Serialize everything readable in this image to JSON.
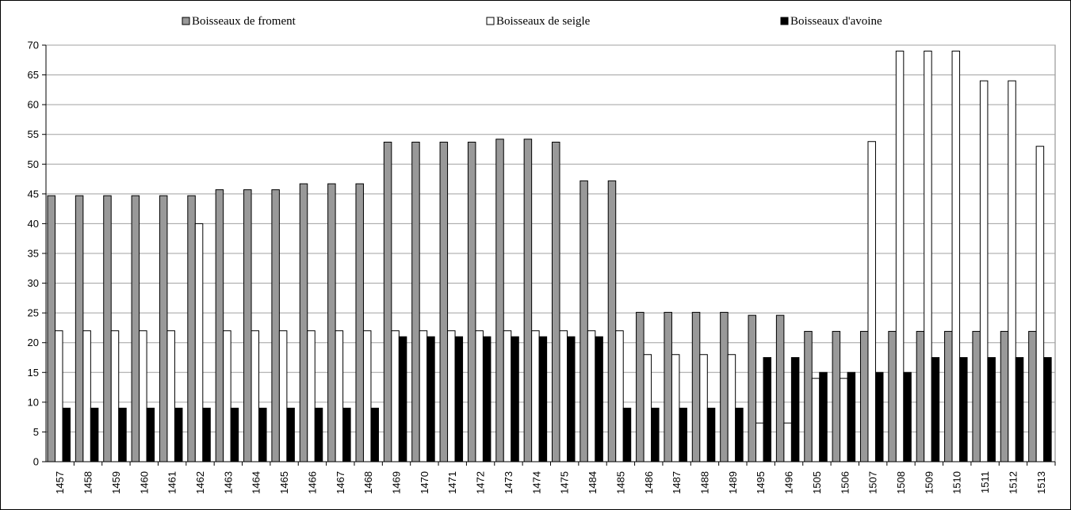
{
  "chart_data": {
    "type": "bar",
    "title": "",
    "xlabel": "",
    "ylabel": "",
    "ylim": [
      0,
      70
    ],
    "yticks": [
      0,
      5,
      10,
      15,
      20,
      25,
      30,
      35,
      40,
      45,
      50,
      55,
      60,
      65,
      70
    ],
    "grid": true,
    "legend_position": "top",
    "categories": [
      "1457",
      "1458",
      "1459",
      "1460",
      "1461",
      "1462",
      "1463",
      "1464",
      "1465",
      "1466",
      "1467",
      "1468",
      "1469",
      "1470",
      "1471",
      "1472",
      "1473",
      "1474",
      "1475",
      "1484",
      "1485",
      "1486",
      "1487",
      "1488",
      "1489",
      "1495",
      "1496",
      "1505",
      "1506",
      "1507",
      "1508",
      "1509",
      "1510",
      "1511",
      "1512",
      "1513"
    ],
    "series": [
      {
        "name": "Boisseaux de froment",
        "color": "#999999",
        "values": [
          44.7,
          44.7,
          44.7,
          44.7,
          44.7,
          44.7,
          45.7,
          45.7,
          45.7,
          46.7,
          46.7,
          46.7,
          53.7,
          53.7,
          53.7,
          53.7,
          54.2,
          54.2,
          53.7,
          47.2,
          47.2,
          25.1,
          25.1,
          25.1,
          25.1,
          24.6,
          24.6,
          21.9,
          21.9,
          21.9,
          21.9,
          21.9,
          21.9,
          21.9,
          21.9,
          21.9
        ]
      },
      {
        "name": "Boisseaux de seigle",
        "color": "#ffffff",
        "values": [
          22,
          22,
          22,
          22,
          22,
          40,
          22,
          22,
          22,
          22,
          22,
          22,
          22,
          22,
          22,
          22,
          22,
          22,
          22,
          22,
          22,
          18,
          18,
          18,
          18,
          6.5,
          6.5,
          14,
          14,
          53.8,
          69,
          69,
          69,
          64,
          64,
          53
        ]
      },
      {
        "name": "Boisseaux d'avoine",
        "color": "#000000",
        "values": [
          9,
          9,
          9,
          9,
          9,
          9,
          9,
          9,
          9,
          9,
          9,
          9,
          21,
          21,
          21,
          21,
          21,
          21,
          21,
          21,
          9,
          9,
          9,
          9,
          9,
          17.5,
          17.5,
          15,
          15,
          15,
          15,
          17.5,
          17.5,
          17.5,
          17.5,
          17.5
        ]
      }
    ]
  }
}
